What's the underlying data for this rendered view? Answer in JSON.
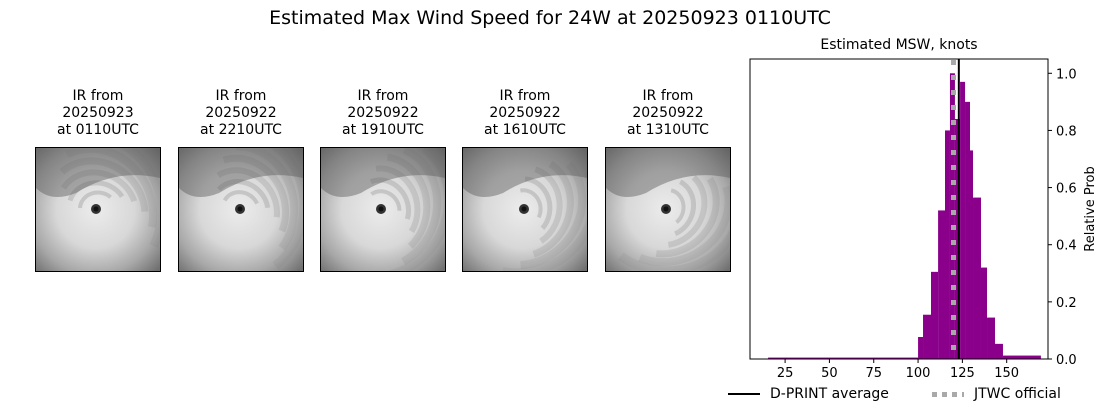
{
  "figure": {
    "title": "Estimated Max Wind Speed for 24W at 20250923 0110UTC"
  },
  "thumbnails": [
    {
      "line1": "IR from",
      "line2": "20250923",
      "line3": "at 0110UTC",
      "seed": 1
    },
    {
      "line1": "IR from",
      "line2": "20250922",
      "line3": "at 2210UTC",
      "seed": 2
    },
    {
      "line1": "IR from",
      "line2": "20250922",
      "line3": "at 1910UTC",
      "seed": 3
    },
    {
      "line1": "IR from",
      "line2": "20250922",
      "line3": "at 1610UTC",
      "seed": 4
    },
    {
      "line1": "IR from",
      "line2": "20250922",
      "line3": "at 1310UTC",
      "seed": 5
    }
  ],
  "legend": {
    "dprint_label": "D-PRINT average",
    "jtwc_label": "JTWC official"
  },
  "colors": {
    "bar": "#8b008b",
    "dprint_line": "#000000",
    "jtwc_line": "#a9a9a9"
  },
  "chart_data": {
    "type": "bar",
    "title": "Estimated MSW, knots",
    "xlabel": "",
    "ylabel": "Relative Prob",
    "xlim": [
      5.2,
      173.3
    ],
    "ylim": [
      0.0,
      1.05
    ],
    "xticks": [
      25,
      50,
      75,
      100,
      125,
      150
    ],
    "yticks": [
      0.0,
      0.2,
      0.4,
      0.6,
      0.8,
      1.0
    ],
    "ytick_labels": [
      "0.0",
      "0.2",
      "0.4",
      "0.6",
      "0.8",
      "1.0"
    ],
    "yaxis_side": "right",
    "grid": false,
    "legend_position": "below",
    "bins": [
      {
        "left": 15.4,
        "right": 100.0,
        "value": 0.005
      },
      {
        "left": 100.0,
        "right": 102.8,
        "value": 0.077
      },
      {
        "left": 102.8,
        "right": 107.3,
        "value": 0.155
      },
      {
        "left": 107.3,
        "right": 111.3,
        "value": 0.305
      },
      {
        "left": 111.3,
        "right": 115.2,
        "value": 0.52
      },
      {
        "left": 115.2,
        "right": 118.0,
        "value": 0.8
      },
      {
        "left": 118.0,
        "right": 120.8,
        "value": 1.0
      },
      {
        "left": 120.8,
        "right": 123.7,
        "value": 0.84
      },
      {
        "left": 123.7,
        "right": 126.5,
        "value": 0.97
      },
      {
        "left": 126.5,
        "right": 129.3,
        "value": 0.9
      },
      {
        "left": 129.3,
        "right": 131.0,
        "value": 0.73
      },
      {
        "left": 131.0,
        "right": 135.5,
        "value": 0.565
      },
      {
        "left": 135.5,
        "right": 138.9,
        "value": 0.32
      },
      {
        "left": 138.9,
        "right": 143.4,
        "value": 0.145
      },
      {
        "left": 143.4,
        "right": 147.9,
        "value": 0.053
      },
      {
        "left": 147.9,
        "right": 169.3,
        "value": 0.012
      }
    ],
    "series": [
      {
        "name": "D-PRINT average",
        "type": "vline",
        "x": 123
      },
      {
        "name": "JTWC official",
        "type": "vline-dotted",
        "x": 120
      }
    ]
  }
}
